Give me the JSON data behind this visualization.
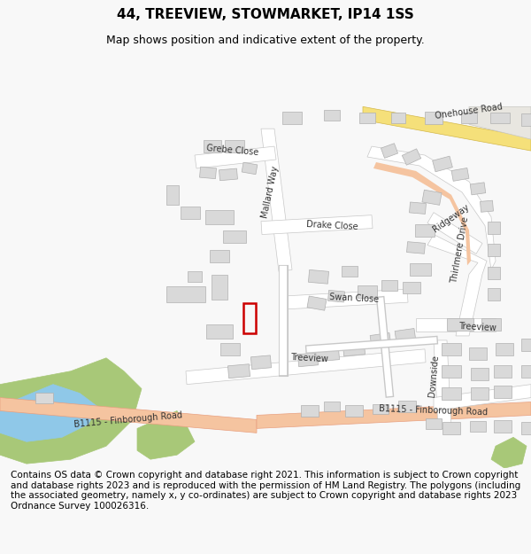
{
  "title": "44, TREEVIEW, STOWMARKET, IP14 1SS",
  "subtitle": "Map shows position and indicative extent of the property.",
  "footer": "Contains OS data © Crown copyright and database right 2021. This information is subject to Crown copyright and database rights 2023 and is reproduced with the permission of HM Land Registry. The polygons (including the associated geometry, namely x, y co-ordinates) are subject to Crown copyright and database rights 2023 Ordnance Survey 100026316.",
  "bg_color": "#f8f8f8",
  "map_bg": "#f5f4f1",
  "building_color": "#d9d9d9",
  "building_edge": "#b0b0b0",
  "road_color": "#ffffff",
  "road_edge": "#c8c8c8",
  "major_road_color": "#f5c4a0",
  "major_road_edge": "#e8a080",
  "yellow_road_color": "#f5e07a",
  "yellow_road_edge": "#d4b84a",
  "green_area_color": "#a8c878",
  "water_color": "#8fc8e8",
  "property_color": "#cc0000",
  "title_fontsize": 11,
  "subtitle_fontsize": 9,
  "footer_fontsize": 7.5
}
